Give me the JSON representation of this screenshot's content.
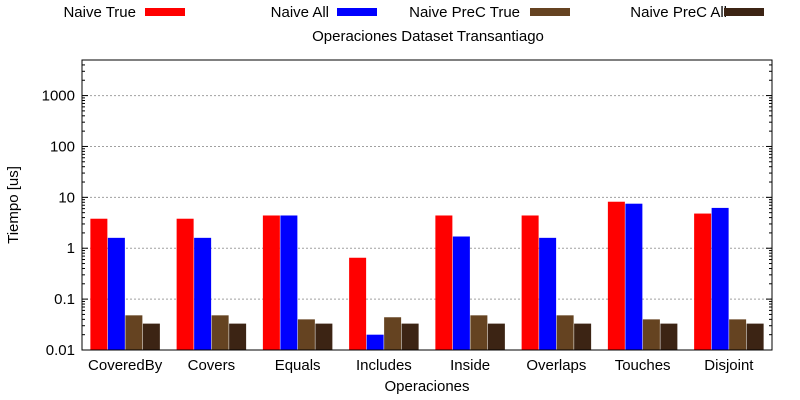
{
  "chart_data": {
    "type": "bar",
    "title": "Operaciones Dataset Transantiago",
    "xlabel": "Operaciones",
    "ylabel": "Tiempo [us]",
    "yscale": "log",
    "ylim": [
      0.01,
      5000
    ],
    "yticks": [
      {
        "value": 0.01,
        "label": "0.01"
      },
      {
        "value": 0.1,
        "label": "0.1"
      },
      {
        "value": 1,
        "label": "1"
      },
      {
        "value": 10,
        "label": "10"
      },
      {
        "value": 100,
        "label": "100"
      },
      {
        "value": 1000,
        "label": "1000"
      }
    ],
    "grid": true,
    "legend_position": "top",
    "categories": [
      "CoveredBy",
      "Covers",
      "Equals",
      "Includes",
      "Inside",
      "Overlaps",
      "Touches",
      "Disjoint"
    ],
    "series": [
      {
        "name": "Naive True",
        "color": "#ff0000",
        "values": [
          3.8,
          3.8,
          4.4,
          0.65,
          4.4,
          4.4,
          8.2,
          4.8
        ]
      },
      {
        "name": "Naive All",
        "color": "#0000ff",
        "values": [
          1.6,
          1.6,
          4.4,
          0.02,
          1.7,
          1.6,
          7.5,
          6.2
        ]
      },
      {
        "name": "Naive PreC True",
        "color": "#654321",
        "values": [
          0.048,
          0.048,
          0.04,
          0.044,
          0.048,
          0.048,
          0.04,
          0.04
        ]
      },
      {
        "name": "Naive PreC All",
        "color": "#3c2414",
        "values": [
          0.033,
          0.033,
          0.033,
          0.033,
          0.033,
          0.033,
          0.033,
          0.033
        ]
      }
    ]
  }
}
